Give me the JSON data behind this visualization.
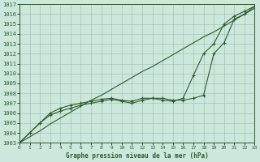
{
  "xlabel_label": "Graphe pression niveau de la mer (hPa)",
  "x_ticks": [
    0,
    1,
    2,
    3,
    4,
    5,
    6,
    7,
    8,
    9,
    10,
    11,
    12,
    13,
    14,
    15,
    16,
    17,
    18,
    19,
    20,
    21,
    22,
    23
  ],
  "ylim": [
    1003,
    1017
  ],
  "xlim": [
    0,
    23
  ],
  "yticks": [
    1003,
    1004,
    1005,
    1006,
    1007,
    1008,
    1009,
    1010,
    1011,
    1012,
    1013,
    1014,
    1015,
    1016,
    1017
  ],
  "background_color": "#cce8dc",
  "grid_color": "#99bbaa",
  "line_color": "#2d5a2d",
  "line1_y": [
    1003.0,
    1003.6,
    1004.2,
    1004.9,
    1005.5,
    1006.1,
    1006.7,
    1007.3,
    1007.8,
    1008.4,
    1009.0,
    1009.6,
    1010.2,
    1010.7,
    1011.3,
    1011.9,
    1012.5,
    1013.1,
    1013.7,
    1014.2,
    1014.8,
    1015.4,
    1016.0,
    1016.6
  ],
  "line2_y": [
    1003.0,
    1004.0,
    1005.0,
    1006.0,
    1006.5,
    1006.8,
    1007.0,
    1007.2,
    1007.4,
    1007.5,
    1007.3,
    1007.2,
    1007.5,
    1007.5,
    1007.5,
    1007.3,
    1007.3,
    1007.5,
    1007.8,
    1012.0,
    1013.1,
    1015.5,
    1016.0,
    1016.8
  ],
  "line3_y": [
    1003.0,
    1004.0,
    1005.0,
    1005.8,
    1006.2,
    1006.5,
    1006.8,
    1007.0,
    1007.2,
    1007.4,
    1007.2,
    1007.0,
    1007.3,
    1007.5,
    1007.3,
    1007.2,
    1007.5,
    1009.8,
    1012.0,
    1013.0,
    1015.0,
    1015.8,
    1016.3,
    1016.8
  ],
  "text_color": "#2d5a2d",
  "marker": "+",
  "markersize": 3,
  "linewidth": 0.8
}
